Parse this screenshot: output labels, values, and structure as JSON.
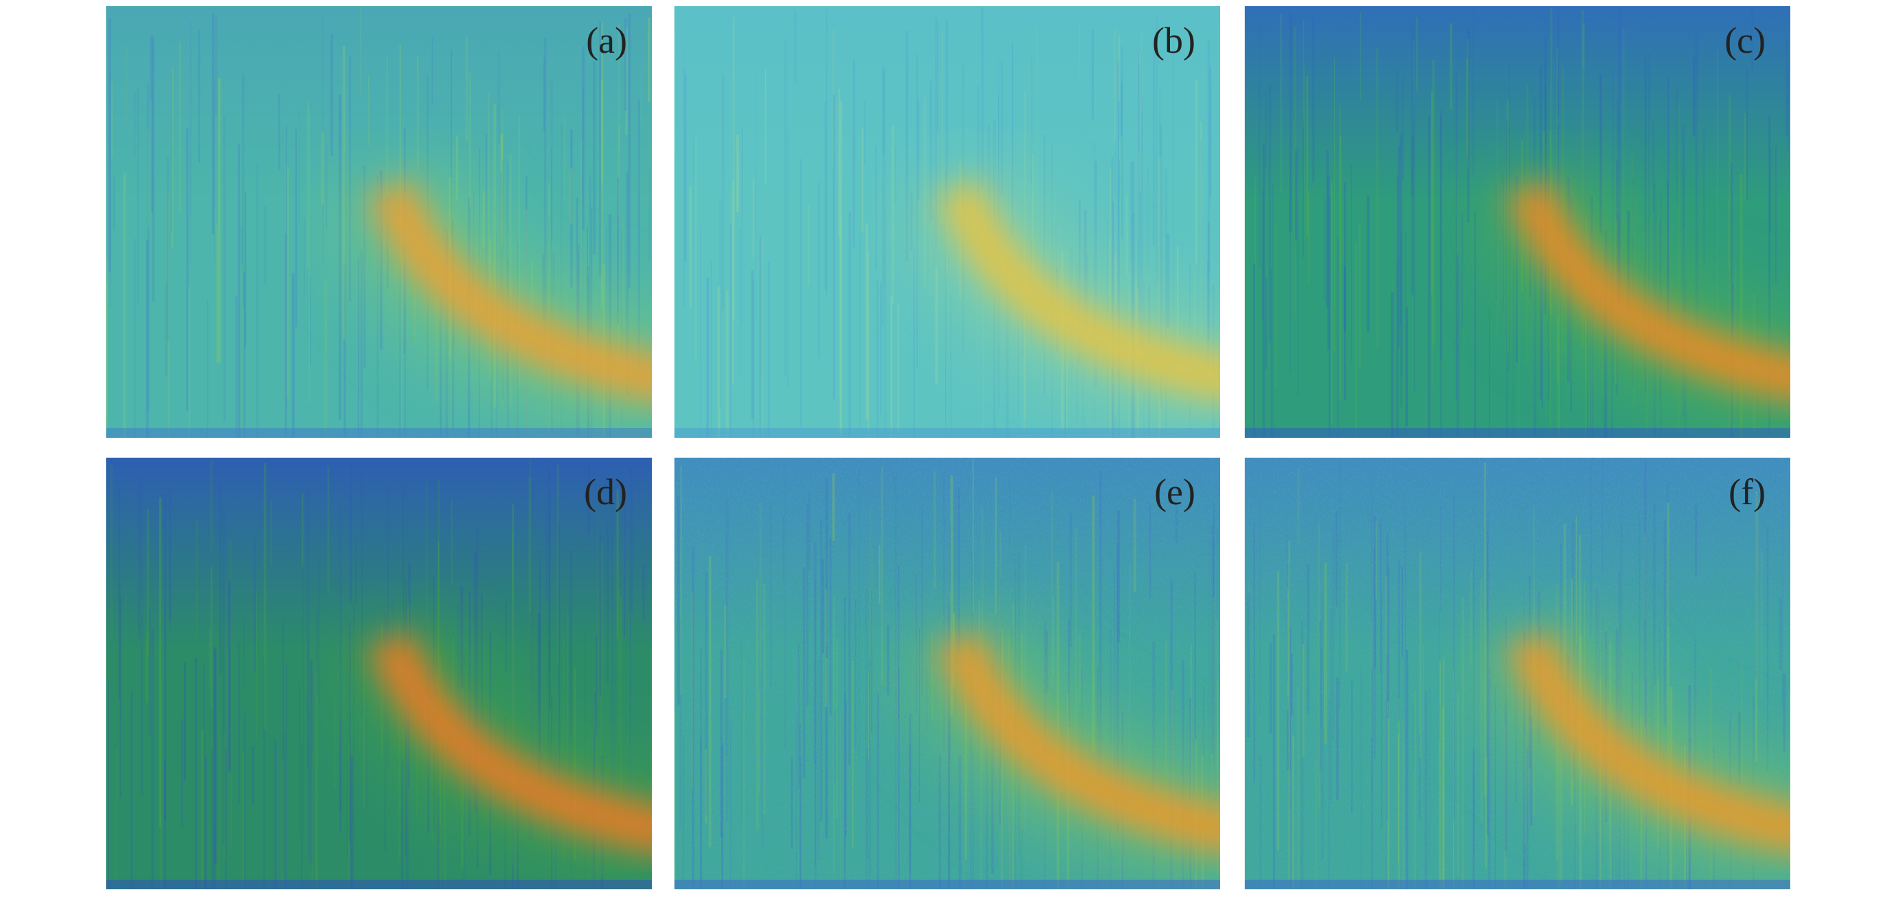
{
  "panels": [
    {
      "label": "(a)"
    },
    {
      "label": "(b)"
    },
    {
      "label": "(c)"
    },
    {
      "label": "(d)"
    },
    {
      "label": "(e)"
    },
    {
      "label": "(f)"
    }
  ]
}
